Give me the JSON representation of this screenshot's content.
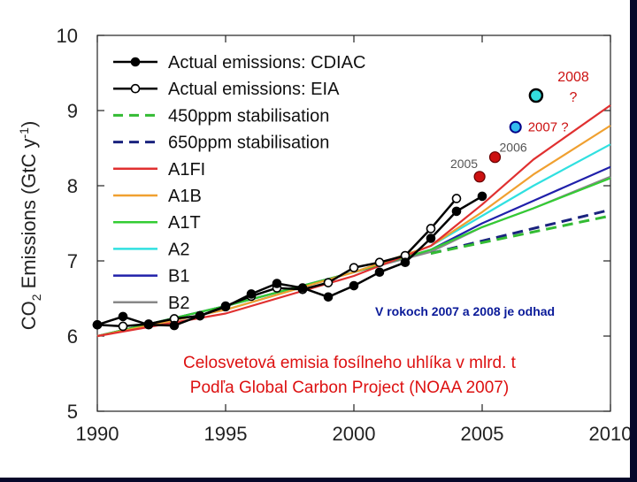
{
  "chart_data": {
    "type": "line",
    "ylabel": "CO2 Emissions (GtC y-1)",
    "ylabel_parts": {
      "main": "CO",
      "sub": "2",
      "rest": " Emissions (GtC y",
      "sup": "-1",
      "end": ")"
    },
    "xlabel": "",
    "xlim": [
      1990,
      2010
    ],
    "ylim": [
      5,
      10
    ],
    "xticks": [
      1990,
      1995,
      2000,
      2005,
      2010
    ],
    "yticks": [
      5,
      6,
      7,
      8,
      9,
      10
    ],
    "grid": false,
    "legend_position": "top-left",
    "series": [
      {
        "name": "Actual emissions: CDIAC",
        "color": "#000000",
        "style": "solid",
        "marker": "filled",
        "x": [
          1990,
          1991,
          1992,
          1993,
          1994,
          1995,
          1996,
          1997,
          1998,
          1999,
          2000,
          2001,
          2002,
          2003,
          2004,
          2005
        ],
        "y": [
          6.15,
          6.26,
          6.15,
          6.14,
          6.27,
          6.39,
          6.56,
          6.7,
          6.64,
          6.52,
          6.67,
          6.85,
          6.98,
          7.3,
          7.66,
          7.86
        ]
      },
      {
        "name": "Actual emissions: EIA",
        "color": "#000000",
        "style": "solid",
        "marker": "open",
        "x": [
          1990,
          1991,
          1992,
          1993,
          1994,
          1995,
          1996,
          1997,
          1998,
          1999,
          2000,
          2001,
          2002,
          2003,
          2004
        ],
        "y": [
          6.15,
          6.13,
          6.16,
          6.23,
          6.27,
          6.4,
          6.53,
          6.64,
          6.62,
          6.71,
          6.91,
          6.98,
          7.07,
          7.43,
          7.83
        ]
      },
      {
        "name": "450ppm stabilisation",
        "color": "#33bb33",
        "style": "dashed",
        "x": [
          2003,
          2010
        ],
        "y": [
          7.1,
          7.6
        ]
      },
      {
        "name": "650ppm stabilisation",
        "color": "#1a237e",
        "style": "dashed",
        "x": [
          2003,
          2010
        ],
        "y": [
          7.1,
          7.68
        ]
      },
      {
        "name": "A1FI",
        "color": "#e03030",
        "style": "solid",
        "x": [
          1990,
          1995,
          2000,
          2003,
          2005,
          2007,
          2010
        ],
        "y": [
          6.0,
          6.3,
          6.8,
          7.2,
          7.75,
          8.35,
          9.07
        ]
      },
      {
        "name": "A1B",
        "color": "#f0a030",
        "style": "solid",
        "x": [
          1990,
          1995,
          2000,
          2003,
          2005,
          2007,
          2010
        ],
        "y": [
          6.0,
          6.35,
          6.85,
          7.2,
          7.65,
          8.15,
          8.8
        ]
      },
      {
        "name": "A1T",
        "color": "#33cc33",
        "style": "solid",
        "x": [
          1990,
          1995,
          2000,
          2003,
          2005,
          2007,
          2010
        ],
        "y": [
          6.0,
          6.4,
          6.85,
          7.15,
          7.45,
          7.7,
          8.1
        ]
      },
      {
        "name": "A2",
        "color": "#30e0e0",
        "style": "solid",
        "x": [
          1990,
          1995,
          2000,
          2003,
          2005,
          2007,
          2010
        ],
        "y": [
          6.0,
          6.35,
          6.85,
          7.2,
          7.6,
          8.0,
          8.55
        ]
      },
      {
        "name": "B1",
        "color": "#2020aa",
        "style": "solid",
        "x": [
          1990,
          1995,
          2000,
          2003,
          2005,
          2007,
          2010
        ],
        "y": [
          6.0,
          6.4,
          6.85,
          7.15,
          7.5,
          7.8,
          8.25
        ]
      },
      {
        "name": "B2",
        "color": "#888888",
        "style": "solid",
        "x": [
          1990,
          1995,
          2000,
          2003,
          2005,
          2007,
          2010
        ],
        "y": [
          6.0,
          6.4,
          6.85,
          7.12,
          7.45,
          7.7,
          8.12
        ]
      }
    ],
    "highlight_points": [
      {
        "label": "2005",
        "x": 2004.9,
        "y": 8.12,
        "color": "#cc1111",
        "edge": "#660000"
      },
      {
        "label": "2006",
        "x": 2005.5,
        "y": 8.38,
        "color": "#cc1111",
        "edge": "#660000"
      },
      {
        "label": "2007 ?",
        "x": 2006.3,
        "y": 8.78,
        "color": "#33bbee",
        "edge": "#000088"
      },
      {
        "label": "2008 ?",
        "x": 2007.1,
        "y": 9.2,
        "color": "#33dddd",
        "edge": "#000000"
      }
    ],
    "annotations": {
      "estimate_note": "V rokoch 2007 a 2008 je odhad",
      "title_line1": "Celosvetová emisia fosílneho uhlíka v mlrd. t",
      "title_line2": "Podľa Global Carbon Project (NOAA 2007)"
    }
  }
}
